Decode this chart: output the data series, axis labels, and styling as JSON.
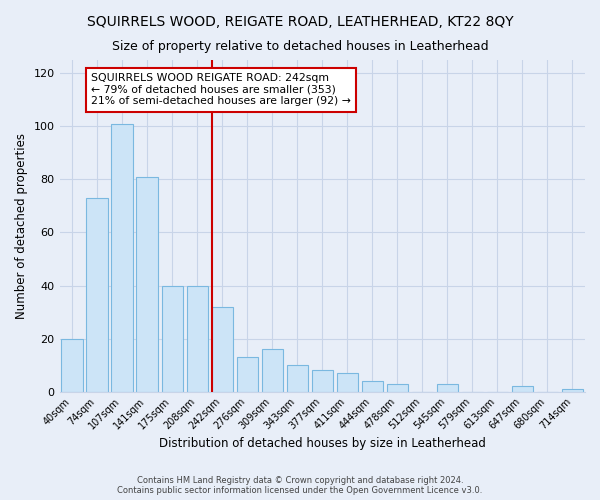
{
  "title": "SQUIRRELS WOOD, REIGATE ROAD, LEATHERHEAD, KT22 8QY",
  "subtitle": "Size of property relative to detached houses in Leatherhead",
  "xlabel": "Distribution of detached houses by size in Leatherhead",
  "ylabel": "Number of detached properties",
  "bar_labels": [
    "40sqm",
    "74sqm",
    "107sqm",
    "141sqm",
    "175sqm",
    "208sqm",
    "242sqm",
    "276sqm",
    "309sqm",
    "343sqm",
    "377sqm",
    "411sqm",
    "444sqm",
    "478sqm",
    "512sqm",
    "545sqm",
    "579sqm",
    "613sqm",
    "647sqm",
    "680sqm",
    "714sqm"
  ],
  "bar_heights": [
    20,
    73,
    101,
    81,
    40,
    40,
    32,
    13,
    16,
    10,
    8,
    7,
    4,
    3,
    0,
    3,
    0,
    0,
    2,
    0,
    1
  ],
  "bar_color": "#cce4f7",
  "bar_edge_color": "#7ab8e0",
  "highlight_bar_index": 6,
  "highlight_line_color": "#cc0000",
  "ylim": [
    0,
    125
  ],
  "yticks": [
    0,
    20,
    40,
    60,
    80,
    100,
    120
  ],
  "annotation_title": "SQUIRRELS WOOD REIGATE ROAD: 242sqm",
  "annotation_line1": "← 79% of detached houses are smaller (353)",
  "annotation_line2": "21% of semi-detached houses are larger (92) →",
  "annotation_box_color": "#ffffff",
  "annotation_box_edge_color": "#cc0000",
  "footer_line1": "Contains HM Land Registry data © Crown copyright and database right 2024.",
  "footer_line2": "Contains public sector information licensed under the Open Government Licence v3.0.",
  "background_color": "#e8eef8",
  "grid_color": "#c8d4e8",
  "title_fontsize": 10,
  "subtitle_fontsize": 9
}
